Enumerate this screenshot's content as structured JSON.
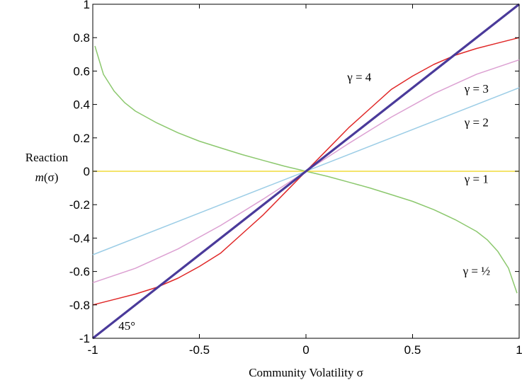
{
  "chart_data": {
    "type": "line",
    "title": "",
    "xlabel": "Community Volatility σ",
    "ylabel_line1": "Reaction",
    "ylabel_line2_italic": "m",
    "ylabel_line2_rest": "(σ)",
    "xlim": [
      -1,
      1
    ],
    "ylim": [
      -1,
      1
    ],
    "grid": false,
    "x_ticks": [
      -1,
      -0.5,
      0,
      0.5,
      1
    ],
    "x_tick_labels": [
      "-1",
      "-0.5",
      "0",
      "0.5",
      "1"
    ],
    "y_ticks": [
      -1,
      -0.8,
      -0.6,
      -0.4,
      -0.2,
      0,
      0.2,
      0.4,
      0.6,
      0.8,
      1
    ],
    "y_tick_labels": [
      "-1",
      "-0.8",
      "-0.6",
      "-0.4",
      "-0.2",
      "0",
      "0.2",
      "0.4",
      "0.6",
      "0.8",
      "1"
    ],
    "series": [
      {
        "name": "γ = ½",
        "color": "#8cc86e",
        "label_anchor": [
          0.8,
          -0.62
        ],
        "x": [
          -0.99,
          -0.95,
          -0.9,
          -0.85,
          -0.8,
          -0.7,
          -0.6,
          -0.5,
          -0.4,
          -0.3,
          -0.2,
          -0.1,
          0,
          0.1,
          0.2,
          0.3,
          0.4,
          0.5,
          0.6,
          0.7,
          0.8,
          0.85,
          0.9,
          0.95,
          0.99
        ],
        "y": [
          0.75,
          0.58,
          0.48,
          0.41,
          0.36,
          0.29,
          0.23,
          0.18,
          0.14,
          0.1,
          0.065,
          0.03,
          0,
          -0.03,
          -0.065,
          -0.1,
          -0.14,
          -0.18,
          -0.23,
          -0.29,
          -0.36,
          -0.41,
          -0.48,
          -0.58,
          -0.73
        ]
      },
      {
        "name": "γ = 1",
        "color": "#f0dc3c",
        "label_anchor": [
          0.8,
          -0.07
        ],
        "x": [
          -1,
          1
        ],
        "y": [
          0,
          0
        ]
      },
      {
        "name": "γ = 2",
        "color": "#9ccde6",
        "label_anchor": [
          0.8,
          0.27
        ],
        "x": [
          -1,
          1
        ],
        "y": [
          -0.5,
          0.5
        ]
      },
      {
        "name": "γ = 3",
        "color": "#dca0d2",
        "label_anchor": [
          0.8,
          0.47
        ],
        "x": [
          -1,
          -0.8,
          -0.6,
          -0.4,
          -0.2,
          0,
          0.2,
          0.4,
          0.6,
          0.8,
          1
        ],
        "y": [
          -0.667,
          -0.581,
          -0.465,
          -0.324,
          -0.166,
          0,
          0.166,
          0.324,
          0.465,
          0.581,
          0.667
        ]
      },
      {
        "name": "γ = 4",
        "color": "#e02828",
        "label_anchor": [
          0.25,
          0.54
        ],
        "x": [
          -1,
          -0.9,
          -0.8,
          -0.7,
          -0.6,
          -0.5,
          -0.4,
          -0.3,
          -0.2,
          -0.1,
          0,
          0.1,
          0.2,
          0.3,
          0.4,
          0.5,
          0.6,
          0.7,
          0.8,
          0.9,
          1
        ],
        "y": [
          -0.8,
          -0.768,
          -0.735,
          -0.695,
          -0.64,
          -0.57,
          -0.49,
          -0.375,
          -0.26,
          -0.13,
          0,
          0.13,
          0.26,
          0.375,
          0.49,
          0.57,
          0.64,
          0.695,
          0.735,
          0.768,
          0.8
        ]
      },
      {
        "name": "45°",
        "color": "#4a3a9a",
        "label_anchor": [
          -0.84,
          -0.95
        ],
        "x": [
          -1,
          1
        ],
        "y": [
          -1,
          1
        ]
      }
    ]
  }
}
